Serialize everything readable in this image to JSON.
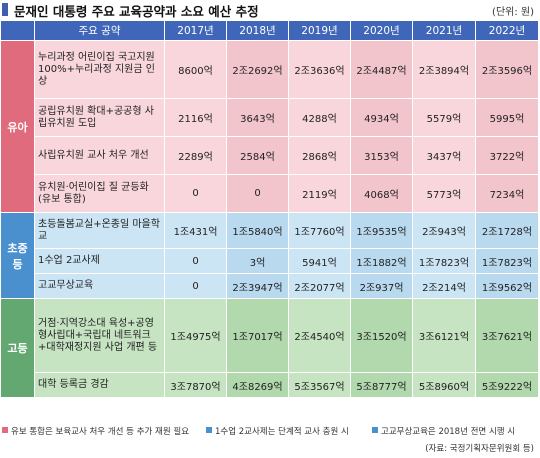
{
  "title": "문재인 대통령 주요 교육공약과 소요 예산 추정",
  "unit": "(단위: 원)",
  "header": {
    "col_pledge": "주요 공약",
    "years": [
      "2017년",
      "2018년",
      "2019년",
      "2020년",
      "2021년",
      "2022년"
    ]
  },
  "categories": {
    "yua": "유아",
    "cho": "초중등",
    "go": "고등"
  },
  "rows": [
    {
      "label": "누리과정 어린이집 국고지원 100%+누리과정 지원금 인상",
      "values": [
        "8600억",
        "2조2692억",
        "2조3636억",
        "2조4487억",
        "2조3894억",
        "2조3596억"
      ]
    },
    {
      "label": "공립유치원 확대+공공형 사립유치원 도입",
      "values": [
        "2116억",
        "3643억",
        "4288억",
        "4934억",
        "5579억",
        "5995억"
      ]
    },
    {
      "label": "사립유치원 교사 처우 개선",
      "values": [
        "2289억",
        "2584억",
        "2868억",
        "3153억",
        "3437억",
        "3722억"
      ]
    },
    {
      "label": "유치원·어린이집 질 균등화(유보 통합)",
      "values": [
        "0",
        "0",
        "2119억",
        "4068억",
        "5773억",
        "7234억"
      ]
    },
    {
      "label": "초등돌봄교실+온종일 마을학교",
      "values": [
        "1조431억",
        "1조5840억",
        "1조7760억",
        "1조9535억",
        "2조943억",
        "2조1728억"
      ]
    },
    {
      "label": "1수업 2교사제",
      "values": [
        "0",
        "3억",
        "5941억",
        "1조1882억",
        "1조7823억",
        "1조7823억"
      ]
    },
    {
      "label": "고교무상교육",
      "values": [
        "0",
        "2조3947억",
        "2조2077억",
        "2조937억",
        "2조214억",
        "1조9562억"
      ]
    },
    {
      "label": "거점·지역강소대 육성+공영형사립대+국립대 네트워크+대학재정지원 사업 개편 등",
      "values": [
        "1조4975억",
        "1조7017억",
        "2조4540억",
        "3조1520억",
        "3조6121억",
        "3조7621억"
      ]
    },
    {
      "label": "대학 등록금 경감",
      "values": [
        "3조7870억",
        "4조8269억",
        "5조3567억",
        "5조8777억",
        "5조8960억",
        "5조9222억"
      ]
    }
  ],
  "notes": [
    "유보 통합은 보육교사 처우 개선 등 추가 재원 필요",
    "1수업 2교사제는 단계적 교사 충원 시",
    "고교무상교육은 2018년 전면 시행 시"
  ],
  "source": "(자료: 국정기획자문위원회 등)",
  "colors": {
    "header": "#3f66b8",
    "yua": "#e06b7c",
    "cho": "#4a90cf",
    "go": "#64a871",
    "yua_bg": "#f8d6dc",
    "cho_bg": "#cce5f5",
    "go_bg": "#c6e3c2"
  }
}
